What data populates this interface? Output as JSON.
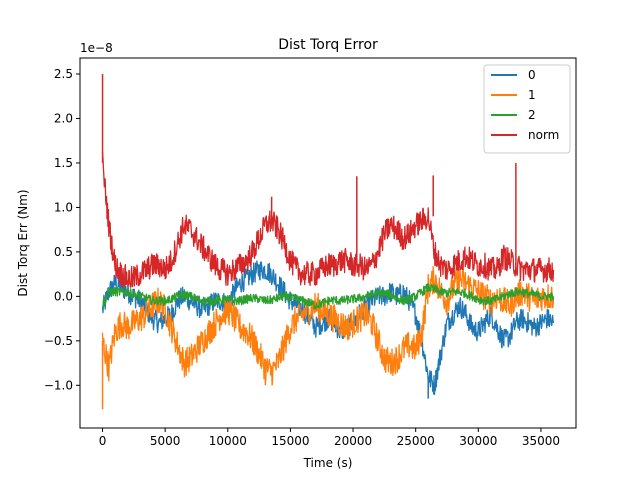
{
  "chart_data": {
    "type": "line",
    "title": "Dist Torq Error",
    "xlabel": "Time (s)",
    "ylabel": "Dist Torq Err (Nm)",
    "y_scale_label": "1e−8",
    "xlim": [
      -1800,
      37800
    ],
    "ylim": [
      -1.48,
      2.68
    ],
    "x_ticks": [
      0,
      5000,
      10000,
      15000,
      20000,
      25000,
      30000,
      35000
    ],
    "x_tick_labels": [
      "0",
      "5000",
      "10000",
      "15000",
      "20000",
      "25000",
      "30000",
      "35000"
    ],
    "y_ticks": [
      -1.0,
      -0.5,
      0.0,
      0.5,
      1.0,
      1.5,
      2.0,
      2.5
    ],
    "y_tick_labels": [
      "−1.0",
      "−0.5",
      "0.0",
      "0.5",
      "1.0",
      "1.5",
      "2.0",
      "2.5"
    ],
    "grid": false,
    "legend_position": "upper-right",
    "series": [
      {
        "name": "0",
        "color": "#1f77b4",
        "x": [
          0,
          500,
          1000,
          1500,
          2000,
          2500,
          3000,
          3500,
          4000,
          4500,
          5000,
          5500,
          6000,
          6500,
          7000,
          7500,
          8000,
          8500,
          9000,
          9500,
          10000,
          10500,
          11000,
          11500,
          12000,
          12500,
          13000,
          13500,
          14000,
          14500,
          15000,
          15500,
          16000,
          16500,
          17000,
          17500,
          18000,
          18500,
          19000,
          19500,
          20000,
          20500,
          21000,
          21500,
          22000,
          22500,
          23000,
          23500,
          24000,
          24500,
          25000,
          25500,
          26000,
          26500,
          27000,
          27500,
          28000,
          28500,
          29000,
          29500,
          30000,
          30500,
          31000,
          31500,
          32000,
          32500,
          33000,
          33500,
          34000,
          34500,
          35000,
          35500,
          36000
        ],
        "y": [
          -0.15,
          0.05,
          0.15,
          0.1,
          0.05,
          0.0,
          -0.05,
          -0.15,
          -0.25,
          -0.3,
          -0.25,
          -0.2,
          -0.05,
          0.0,
          -0.05,
          -0.1,
          -0.15,
          -0.1,
          -0.05,
          -0.05,
          -0.1,
          0.05,
          0.15,
          0.2,
          0.25,
          0.3,
          0.3,
          0.25,
          0.15,
          0.05,
          -0.05,
          -0.1,
          -0.15,
          -0.25,
          -0.35,
          -0.3,
          -0.25,
          -0.3,
          -0.4,
          -0.35,
          -0.3,
          -0.2,
          -0.1,
          -0.05,
          0.0,
          0.0,
          0.05,
          0.0,
          0.05,
          -0.05,
          -0.2,
          -0.5,
          -0.9,
          -1.0,
          -0.65,
          -0.3,
          -0.2,
          -0.1,
          -0.2,
          -0.35,
          -0.4,
          -0.3,
          -0.2,
          -0.35,
          -0.5,
          -0.45,
          -0.3,
          -0.25,
          -0.3,
          -0.35,
          -0.3,
          -0.25,
          -0.3
        ]
      },
      {
        "name": "1",
        "color": "#ff7f0e",
        "x": [
          0,
          500,
          1000,
          1500,
          2000,
          2500,
          3000,
          3500,
          4000,
          4500,
          5000,
          5500,
          6000,
          6500,
          7000,
          7500,
          8000,
          8500,
          9000,
          9500,
          10000,
          10500,
          11000,
          11500,
          12000,
          12500,
          13000,
          13500,
          14000,
          14500,
          15000,
          15500,
          16000,
          16500,
          17000,
          17500,
          18000,
          18500,
          19000,
          19500,
          20000,
          20500,
          21000,
          21500,
          22000,
          22500,
          23000,
          23500,
          24000,
          24500,
          25000,
          25500,
          26000,
          26500,
          27000,
          27500,
          28000,
          28500,
          29000,
          29500,
          30000,
          30500,
          31000,
          31500,
          32000,
          32500,
          33000,
          33500,
          34000,
          34500,
          35000,
          35500,
          36000
        ],
        "y": [
          -0.5,
          -0.8,
          -0.4,
          -0.3,
          -0.35,
          -0.3,
          -0.25,
          -0.2,
          -0.1,
          -0.05,
          -0.15,
          -0.35,
          -0.55,
          -0.75,
          -0.7,
          -0.6,
          -0.5,
          -0.4,
          -0.3,
          -0.2,
          -0.15,
          -0.25,
          -0.35,
          -0.4,
          -0.5,
          -0.65,
          -0.8,
          -0.85,
          -0.75,
          -0.55,
          -0.35,
          -0.25,
          -0.2,
          -0.15,
          -0.1,
          -0.15,
          -0.2,
          -0.25,
          -0.3,
          -0.35,
          -0.3,
          -0.25,
          -0.2,
          -0.3,
          -0.5,
          -0.7,
          -0.75,
          -0.7,
          -0.6,
          -0.55,
          -0.6,
          -0.4,
          0.1,
          0.2,
          0.05,
          -0.05,
          0.1,
          0.2,
          0.15,
          0.1,
          0.05,
          0.0,
          -0.05,
          0.0,
          -0.05,
          -0.1,
          0.0,
          0.05,
          0.0,
          -0.05,
          0.0,
          0.0,
          0.0
        ]
      },
      {
        "name": "2",
        "color": "#2ca02c",
        "x": [
          0,
          500,
          1000,
          1500,
          2000,
          2500,
          3000,
          3500,
          4000,
          4500,
          5000,
          5500,
          6000,
          6500,
          7000,
          7500,
          8000,
          8500,
          9000,
          9500,
          10000,
          10500,
          11000,
          11500,
          12000,
          12500,
          13000,
          13500,
          14000,
          14500,
          15000,
          15500,
          16000,
          16500,
          17000,
          17500,
          18000,
          18500,
          19000,
          19500,
          20000,
          20500,
          21000,
          21500,
          22000,
          22500,
          23000,
          23500,
          24000,
          24500,
          25000,
          25500,
          26000,
          26500,
          27000,
          27500,
          28000,
          28500,
          29000,
          29500,
          30000,
          30500,
          31000,
          31500,
          32000,
          32500,
          33000,
          33500,
          34000,
          34500,
          35000,
          35500,
          36000
        ],
        "y": [
          -0.1,
          0.05,
          0.05,
          0.05,
          0.05,
          0.02,
          0.0,
          -0.02,
          -0.05,
          -0.05,
          -0.05,
          -0.03,
          0.0,
          0.02,
          0.0,
          -0.03,
          -0.05,
          -0.05,
          -0.05,
          -0.04,
          -0.03,
          -0.05,
          -0.05,
          -0.03,
          -0.02,
          -0.03,
          -0.05,
          -0.04,
          -0.02,
          0.0,
          -0.02,
          -0.03,
          -0.05,
          -0.07,
          -0.1,
          -0.08,
          -0.05,
          -0.04,
          -0.05,
          -0.04,
          -0.03,
          -0.02,
          0.0,
          0.02,
          0.03,
          0.03,
          0.02,
          -0.02,
          -0.05,
          -0.03,
          0.0,
          0.05,
          0.1,
          0.08,
          0.05,
          0.04,
          0.05,
          0.05,
          0.03,
          0.0,
          -0.03,
          -0.05,
          -0.05,
          -0.03,
          0.0,
          0.03,
          0.05,
          0.05,
          0.03,
          0.02,
          0.0,
          0.0,
          0.0
        ]
      },
      {
        "name": "norm",
        "color": "#d62728",
        "x": [
          0,
          500,
          1000,
          1500,
          2000,
          2500,
          3000,
          3500,
          4000,
          4500,
          5000,
          5500,
          6000,
          6500,
          7000,
          7500,
          8000,
          8500,
          9000,
          9500,
          10000,
          10500,
          11000,
          11500,
          12000,
          12500,
          13000,
          13500,
          14000,
          14500,
          15000,
          15500,
          16000,
          16500,
          17000,
          17500,
          18000,
          18500,
          19000,
          19500,
          20000,
          20500,
          21000,
          21500,
          22000,
          22500,
          23000,
          23500,
          24000,
          24500,
          25000,
          25500,
          26000,
          26500,
          27000,
          27500,
          28000,
          28500,
          29000,
          29500,
          30000,
          30500,
          31000,
          31500,
          32000,
          32500,
          33000,
          33500,
          34000,
          34500,
          35000,
          35500,
          36000
        ],
        "y": [
          1.5,
          0.8,
          0.35,
          0.25,
          0.2,
          0.2,
          0.25,
          0.3,
          0.35,
          0.35,
          0.3,
          0.4,
          0.6,
          0.8,
          0.75,
          0.65,
          0.55,
          0.45,
          0.35,
          0.3,
          0.25,
          0.3,
          0.35,
          0.4,
          0.5,
          0.65,
          0.8,
          0.85,
          0.75,
          0.6,
          0.4,
          0.3,
          0.25,
          0.25,
          0.25,
          0.3,
          0.35,
          0.35,
          0.4,
          0.4,
          0.35,
          0.35,
          0.3,
          0.35,
          0.5,
          0.7,
          0.8,
          0.75,
          0.65,
          0.7,
          0.8,
          0.85,
          0.9,
          0.5,
          0.35,
          0.3,
          0.35,
          0.4,
          0.45,
          0.4,
          0.35,
          0.35,
          0.3,
          0.3,
          0.45,
          0.4,
          0.35,
          0.3,
          0.3,
          0.3,
          0.3,
          0.3,
          0.3
        ]
      }
    ],
    "spikes": [
      {
        "series": "norm",
        "x": 0,
        "y": 2.5
      },
      {
        "series": "norm",
        "x": 13500,
        "y": 1.12
      },
      {
        "series": "norm",
        "x": 20300,
        "y": 1.35
      },
      {
        "series": "norm",
        "x": 26400,
        "y": 1.36
      },
      {
        "series": "norm",
        "x": 33000,
        "y": 1.5
      },
      {
        "series": "1",
        "x": 0,
        "y": -1.27
      },
      {
        "series": "1",
        "x": 13000,
        "y": -1.0
      },
      {
        "series": "0",
        "x": 26000,
        "y": -1.15
      }
    ]
  }
}
